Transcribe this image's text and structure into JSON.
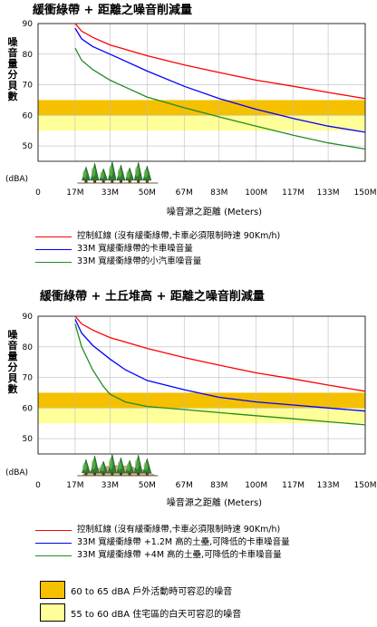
{
  "chart_data": [
    {
      "type": "line",
      "title": "緩衝綠帶 + 距離之噪音削減量",
      "xlabel": "噪音源之距離 (Meters)",
      "ylabel": "噪音量分貝數",
      "y_unit_label": "(dBA)",
      "ylim": [
        45,
        90
      ],
      "yticks": [
        50,
        60,
        70,
        80,
        90
      ],
      "xlim": [
        0,
        150
      ],
      "xticks": [
        0,
        17,
        33,
        50,
        67,
        83,
        100,
        117,
        133,
        150
      ],
      "xtick_labels": [
        "0",
        "17M",
        "33M",
        "50M",
        "67M",
        "83M",
        "100M",
        "117M",
        "133M",
        "150M"
      ],
      "bands": [
        {
          "from": 60,
          "to": 65,
          "color": "#f5c000"
        },
        {
          "from": 55,
          "to": 60,
          "color": "#ffff99"
        }
      ],
      "series": [
        {
          "name": "控制紅線 (沒有緩衝綠帶,卡車必須限制時速 90Km/h)",
          "color": "#ff0000",
          "x": [
            17,
            20,
            25,
            33,
            50,
            67,
            83,
            100,
            117,
            133,
            150
          ],
          "y": [
            90,
            87.5,
            85.5,
            83,
            79.5,
            76.5,
            74,
            71.5,
            69.5,
            67.5,
            65.5
          ]
        },
        {
          "name": "33M 寬緩衝綠帶的卡車噪音量",
          "color": "#0000ff",
          "x": [
            17,
            20,
            25,
            33,
            50,
            67,
            83,
            100,
            117,
            133,
            150
          ],
          "y": [
            88.5,
            85,
            82.5,
            80,
            74.5,
            69.5,
            65.5,
            62,
            59,
            56.5,
            54.5
          ]
        },
        {
          "name": "33M 寬緩衝綠帶的小汽車噪音量",
          "color": "#228b22",
          "x": [
            17,
            20,
            25,
            33,
            50,
            67,
            83,
            100,
            117,
            133,
            150
          ],
          "y": [
            82,
            78,
            75,
            71.5,
            66,
            62.5,
            59.5,
            56.5,
            53.5,
            51,
            49
          ]
        }
      ]
    },
    {
      "type": "line",
      "title": "緩衝綠帶 + 土丘堆高 + 距離之噪音削減量",
      "xlabel": "噪音源之距離 (Meters)",
      "ylabel": "噪音量分貝數",
      "y_unit_label": "(dBA)",
      "ylim": [
        45,
        90
      ],
      "yticks": [
        50,
        60,
        70,
        80,
        90
      ],
      "xlim": [
        0,
        150
      ],
      "xticks": [
        0,
        17,
        33,
        50,
        67,
        83,
        100,
        117,
        133,
        150
      ],
      "xtick_labels": [
        "0",
        "17M",
        "33M",
        "50M",
        "67M",
        "83M",
        "100M",
        "117M",
        "133M",
        "150M"
      ],
      "bands": [
        {
          "from": 60,
          "to": 65,
          "color": "#f5c000"
        },
        {
          "from": 55,
          "to": 60,
          "color": "#ffff99"
        }
      ],
      "series": [
        {
          "name": "控制紅線 (沒有緩衝綠帶,卡車必須限制時速 90Km/h)",
          "color": "#ff0000",
          "x": [
            17,
            20,
            25,
            33,
            50,
            67,
            83,
            100,
            117,
            133,
            150
          ],
          "y": [
            90,
            87.5,
            85.5,
            83,
            79.5,
            76.5,
            74,
            71.5,
            69.5,
            67.5,
            65.5
          ]
        },
        {
          "name": "33M 寬緩衝綠帶 +1.2M 高的土壘,可降低的卡車噪音量",
          "color": "#0000ff",
          "x": [
            17,
            20,
            25,
            33,
            40,
            50,
            67,
            83,
            100,
            117,
            133,
            150
          ],
          "y": [
            89,
            84.5,
            80.5,
            76,
            72.5,
            69,
            66,
            63.5,
            62,
            61,
            60,
            59
          ]
        },
        {
          "name": "33M 寬緩衝綠帶 +4M 高的土壘,可降低的卡車噪音量",
          "color": "#228b22",
          "x": [
            17,
            20,
            25,
            30,
            33,
            40,
            50,
            67,
            83,
            100,
            117,
            133,
            150
          ],
          "y": [
            87.5,
            80,
            72.5,
            67,
            64.5,
            62,
            60.5,
            59.5,
            58.5,
            57.5,
            56.5,
            55.5,
            54.5
          ]
        }
      ]
    }
  ],
  "zones": [
    {
      "label": "60 to 65 dBA 戶外活動時可容忍的噪音",
      "color": "#f5c000"
    },
    {
      "label": "55 to 60 dBA 住宅區的白天可容忍的噪音",
      "color": "#ffff99"
    }
  ]
}
